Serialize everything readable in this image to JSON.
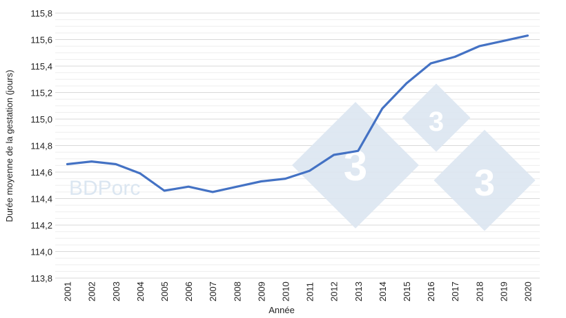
{
  "chart_data": {
    "type": "line",
    "title": "",
    "xlabel": "Année",
    "ylabel": "Durée moyenne de la gestation (jours)",
    "ylim": [
      113.8,
      115.8
    ],
    "y_ticks": [
      "113,8",
      "114,0",
      "114,2",
      "114,4",
      "114,6",
      "114,8",
      "115,0",
      "115,2",
      "115,4",
      "115,6",
      "115,8"
    ],
    "grid": {
      "major": true,
      "minor": true
    },
    "legend": "none",
    "categories": [
      "2001",
      "2002",
      "2003",
      "2004",
      "2005",
      "2006",
      "2007",
      "2008",
      "2009",
      "2010",
      "2011",
      "2012",
      "2013",
      "2014",
      "2015",
      "2016",
      "2017",
      "2018",
      "2019",
      "2020"
    ],
    "series": [
      {
        "name": "Durée moyenne de la gestation",
        "color": "#4472c4",
        "values": [
          114.66,
          114.68,
          114.66,
          114.59,
          114.46,
          114.49,
          114.45,
          114.49,
          114.53,
          114.55,
          114.61,
          114.73,
          114.76,
          115.08,
          115.27,
          115.42,
          115.47,
          115.55,
          115.59,
          115.63
        ]
      }
    ]
  },
  "watermark": {
    "text": "BDPorc",
    "logo_digit": "3"
  }
}
